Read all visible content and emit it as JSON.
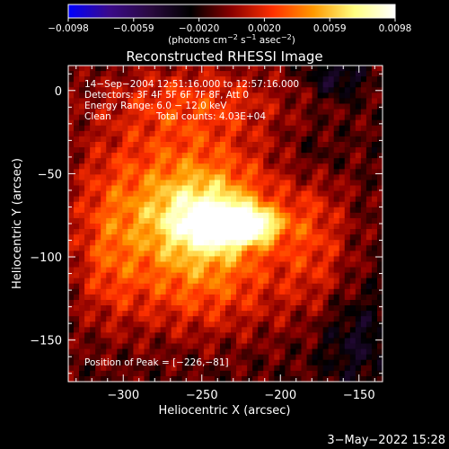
{
  "chart_data": {
    "type": "heatmap",
    "title": "Reconstructed RHESSI Image",
    "xlabel": "Heliocentric X (arcsec)",
    "ylabel": "Heliocentric Y (arcsec)",
    "xlim": [
      -335,
      -135
    ],
    "ylim": [
      -175,
      15
    ],
    "x_ticks": [
      -300,
      -250,
      -200,
      -150
    ],
    "y_ticks": [
      0,
      -50,
      -100,
      -150
    ],
    "x_tick_labels": [
      "−300",
      "−250",
      "−200",
      "−150"
    ],
    "y_tick_labels": [
      "0",
      "−50",
      "−100",
      "−150"
    ],
    "colorbar": {
      "range": [
        -0.0098,
        0.0098
      ],
      "tick_labels": [
        "−0.0098",
        "−0.0059",
        "−0.0020",
        "0.0020",
        "0.0059",
        "0.0098"
      ],
      "unit_parts": [
        "(photons cm",
        "−2",
        " s",
        "−1",
        " asec",
        "−2",
        ")"
      ],
      "stops": [
        "#0000ff",
        "#3a0a8a",
        "#2a0a40",
        "#000000",
        "#8b0000",
        "#ff3000",
        "#ff9900",
        "#ffff80",
        "#ffffff"
      ]
    },
    "annotations": [
      "14−Sep−2004 12:51:16.000 to 12:57:16.000",
      "Detectors: 3F 4F 5F 6F 7F 8F, Att 0",
      "Energy Range: 6.0 − 12.0 keV",
      "Clean",
      "Total counts: 4.03E+04"
    ],
    "peak_label": "Position of Peak = [−226,−81]",
    "peak": {
      "x": -226,
      "y": -81
    },
    "emission_regions": [
      {
        "x": -226,
        "y": -81,
        "sx": 16,
        "sy": 7,
        "amp": 0.0098
      },
      {
        "x": -247,
        "y": -78,
        "sx": 26,
        "sy": 17,
        "amp": 0.0064
      },
      {
        "x": -262,
        "y": -58,
        "sx": 42,
        "sy": 36,
        "amp": 0.0048
      },
      {
        "x": -250,
        "y": -118,
        "sx": 40,
        "sy": 22,
        "amp": 0.0034
      },
      {
        "x": -310,
        "y": -95,
        "sx": 15,
        "sy": 32,
        "amp": 0.0025
      },
      {
        "x": -178,
        "y": -88,
        "sx": 16,
        "sy": 32,
        "amp": 0.0028
      },
      {
        "x": -255,
        "y": -5,
        "sx": 42,
        "sy": 14,
        "amp": 0.0022
      },
      {
        "x": -165,
        "y": 8,
        "sx": 12,
        "sy": 9,
        "amp": -0.0028
      },
      {
        "x": -152,
        "y": -150,
        "sx": 18,
        "sy": 20,
        "amp": -0.0022
      },
      {
        "x": -180,
        "y": -40,
        "sx": 14,
        "sy": 14,
        "amp": -0.0015
      }
    ],
    "background_level": -0.0012
  },
  "footer": {
    "timestamp": "3−May−2022 15:28"
  }
}
